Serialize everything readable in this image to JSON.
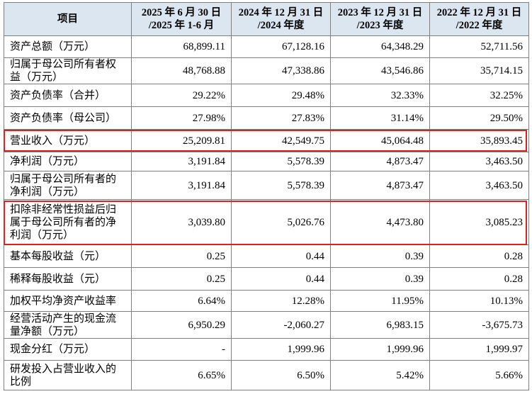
{
  "table": {
    "header": [
      [
        "项目"
      ],
      [
        "2025 年 6 月 30 日",
        "/2025 年 1-6 月"
      ],
      [
        "2024 年 12 月 31 日",
        "/2024 年度"
      ],
      [
        "2023 年 12 月 31 日",
        "/2023 年度"
      ],
      [
        "2022 年 12 月 31 日",
        "/2022 年度"
      ]
    ],
    "rows": [
      [
        "资产总额（万元）",
        "68,899.11",
        "67,128.16",
        "64,348.29",
        "52,711.56"
      ],
      [
        "归属于母公司所有者权益（万元）",
        "48,768.88",
        "47,338.86",
        "43,546.86",
        "35,714.15"
      ],
      [
        "资产负债率（合并）",
        "29.22%",
        "29.48%",
        "32.33%",
        "32.25%"
      ],
      [
        "资产负债率（母公司）",
        "27.98%",
        "27.83%",
        "31.14%",
        "29.50%"
      ],
      [
        "营业收入（万元）",
        "25,209.81",
        "42,549.75",
        "45,064.48",
        "35,893.45"
      ],
      [
        "净利润（万元）",
        "3,191.84",
        "5,578.39",
        "4,873.47",
        "3,463.50"
      ],
      [
        "归属于母公司所有者的净利润（万元）",
        "3,191.84",
        "5,578.39",
        "4,873.47",
        "3,463.50"
      ],
      [
        "扣除非经常性损益后归属于母公司所有者的净利润（万元）",
        "3,039.80",
        "5,026.76",
        "4,473.80",
        "3,085.23"
      ],
      [
        "基本每股收益（元）",
        "0.25",
        "0.44",
        "0.39",
        "0.28"
      ],
      [
        "稀释每股收益（元）",
        "0.25",
        "0.44",
        "0.39",
        "0.28"
      ],
      [
        "加权平均净资产收益率",
        "6.64%",
        "12.28%",
        "11.95%",
        "10.13%"
      ],
      [
        "经营活动产生的现金流量净额（万元）",
        "6,950.29",
        "-2,060.27",
        "6,983.15",
        "-3,675.73"
      ],
      [
        "现金分红（万元）",
        "-",
        "1,999.96",
        "1,999.96",
        "1,999.97"
      ],
      [
        "研发投入占营业收入的比例",
        "6.65%",
        "6.50%",
        "5.42%",
        "5.66%"
      ]
    ]
  }
}
